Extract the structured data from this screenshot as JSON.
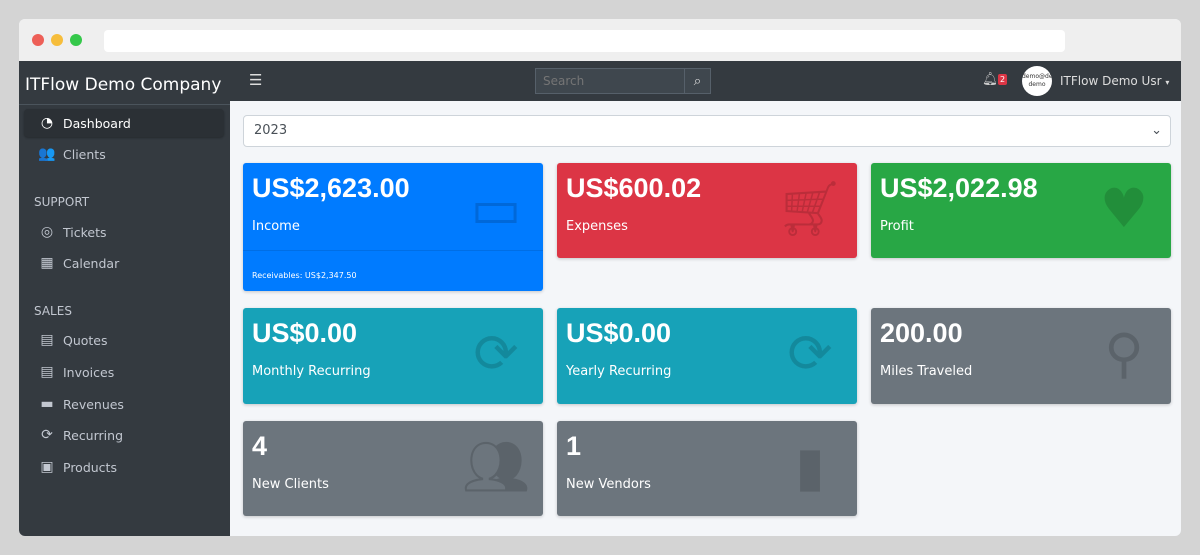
{
  "browser": {
    "dots": [
      "#ed5f57",
      "#f6bd3b",
      "#35c84a"
    ]
  },
  "sidebar": {
    "brand": "ITFlow Demo Company",
    "items": [
      {
        "label": "Dashboard",
        "icon": "tachometer-icon"
      },
      {
        "label": "Clients",
        "icon": "users-icon"
      }
    ],
    "support_header": "SUPPORT",
    "support": [
      {
        "label": "Tickets",
        "icon": "life-ring-icon"
      },
      {
        "label": "Calendar",
        "icon": "calendar-icon"
      }
    ],
    "sales_header": "SALES",
    "sales": [
      {
        "label": "Quotes",
        "icon": "file-icon"
      },
      {
        "label": "Invoices",
        "icon": "invoice-icon"
      },
      {
        "label": "Revenues",
        "icon": "credit-card-icon"
      },
      {
        "label": "Recurring",
        "icon": "sync-icon"
      },
      {
        "label": "Products",
        "icon": "box-icon"
      }
    ]
  },
  "topnav": {
    "search_placeholder": "Search",
    "notif_count": "2",
    "avatar_text": "demo@demo demo",
    "user": "ITFlow Demo Usr"
  },
  "year_select": "2023",
  "cards": [
    {
      "value": "US$2,623.00",
      "label": "Income",
      "footer": "Receivables: US$2,347.50",
      "color": "#007bff",
      "icon": "credit-card-icon"
    },
    {
      "value": "US$600.02",
      "label": "Expenses",
      "color": "#dc3545",
      "icon": "cart-icon"
    },
    {
      "value": "US$2,022.98",
      "label": "Profit",
      "color": "#28a745",
      "icon": "heart-icon"
    },
    {
      "value": "US$0.00",
      "label": "Monthly Recurring",
      "color": "#17a2b8",
      "icon": "sync-icon"
    },
    {
      "value": "US$0.00",
      "label": "Yearly Recurring",
      "color": "#17a2b8",
      "icon": "sync-icon"
    },
    {
      "value": "200.00",
      "label": "Miles Traveled",
      "color": "#6c757d",
      "icon": "route-icon"
    },
    {
      "value": "4",
      "label": "New Clients",
      "color": "#6c757d",
      "icon": "users-icon"
    },
    {
      "value": "1",
      "label": "New Vendors",
      "color": "#6c757d",
      "icon": "building-icon"
    }
  ]
}
